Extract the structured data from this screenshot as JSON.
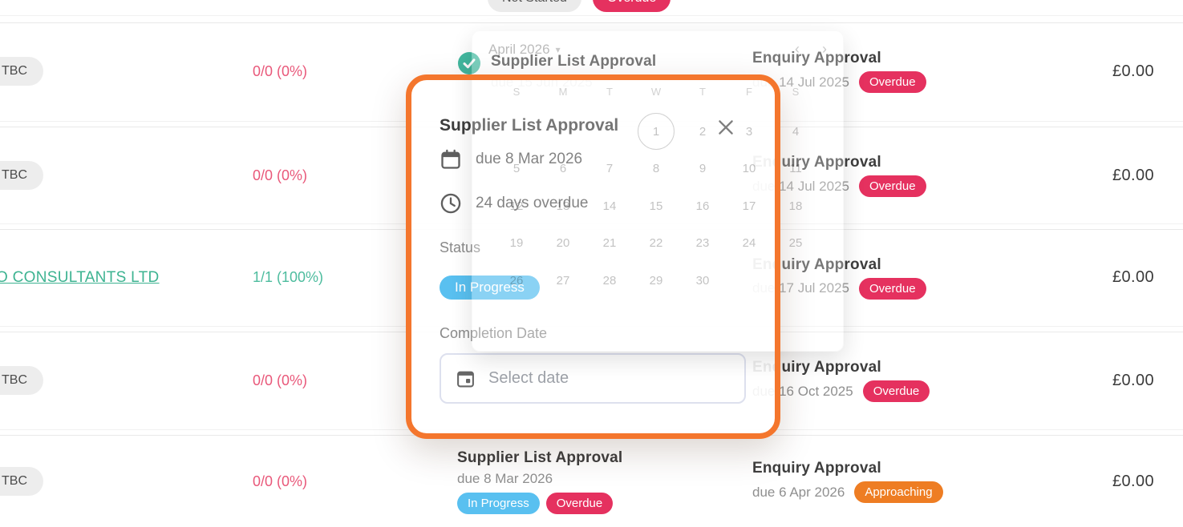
{
  "top_row": {
    "badges": [
      {
        "label": "Not Started",
        "type": "neutral"
      },
      {
        "label": "Overdue",
        "type": "danger"
      }
    ]
  },
  "table": {
    "rows": [
      {
        "supplier": {
          "kind": "badge",
          "label": "TBC"
        },
        "progress": {
          "value": "0/0 (0%)",
          "state": "danger"
        },
        "supplier_task": {
          "title": "Supplier List Approval",
          "due": "due 15 Jun 2025",
          "completed": true,
          "badges": []
        },
        "enquiry_task": {
          "title": "Enquiry Approval",
          "due": "due 14 Jul 2025",
          "badges": [
            {
              "label": "Overdue",
              "type": "danger"
            }
          ]
        },
        "amount": "£0.00"
      },
      {
        "supplier": {
          "kind": "badge",
          "label": "TBC"
        },
        "progress": {
          "value": "0/0 (0%)",
          "state": "danger"
        },
        "supplier_task": null,
        "enquiry_task": {
          "title": "Enquiry Approval",
          "due": "due 14 Jul 2025",
          "badges": [
            {
              "label": "Overdue",
              "type": "danger"
            }
          ]
        },
        "amount": "£0.00"
      },
      {
        "supplier": {
          "kind": "link",
          "label": "PO CONSULTANTS LTD"
        },
        "progress": {
          "value": "1/1 (100%)",
          "state": "success"
        },
        "supplier_task": null,
        "enquiry_task": {
          "title": "Enquiry Approval",
          "due": "due 17 Jul 2025",
          "badges": [
            {
              "label": "Overdue",
              "type": "danger"
            }
          ]
        },
        "amount": "£0.00"
      },
      {
        "supplier": {
          "kind": "badge",
          "label": "TBC"
        },
        "progress": {
          "value": "0/0 (0%)",
          "state": "danger"
        },
        "supplier_task": null,
        "enquiry_task": {
          "title": "Enquiry Approval",
          "due": "due 16 Oct 2025",
          "badges": [
            {
              "label": "Overdue",
              "type": "danger"
            }
          ]
        },
        "amount": "£0.00"
      },
      {
        "supplier": {
          "kind": "badge",
          "label": "TBC"
        },
        "progress": {
          "value": "0/0 (0%)",
          "state": "danger"
        },
        "supplier_task": {
          "title": "Supplier List Approval",
          "due": "due 8 Mar 2026",
          "completed": false,
          "badges": [
            {
              "label": "In Progress",
              "type": "info"
            },
            {
              "label": "Overdue",
              "type": "danger"
            }
          ]
        },
        "enquiry_task": {
          "title": "Enquiry Approval",
          "due": "due 6 Apr 2026",
          "badges": [
            {
              "label": "Approaching",
              "type": "warning"
            }
          ]
        },
        "amount": "£0.00"
      }
    ]
  },
  "popup": {
    "title": "Supplier List Approval",
    "due": "due 8 Mar 2026",
    "overdue": "24 days overdue",
    "status_label": "Status",
    "status_badge": {
      "label": "In Progress",
      "type": "info"
    },
    "completion_label": "Completion Date",
    "date_placeholder": "Select date"
  },
  "calendar": {
    "month": "April 2026",
    "day_headers": [
      "S",
      "M",
      "T",
      "W",
      "T",
      "F",
      "S"
    ],
    "weeks": [
      [
        "",
        "",
        "",
        "1",
        "2",
        "3",
        "4"
      ],
      [
        "5",
        "6",
        "7",
        "8",
        "9",
        "10",
        "11"
      ],
      [
        "12",
        "13",
        "14",
        "15",
        "16",
        "17",
        "18"
      ],
      [
        "19",
        "20",
        "21",
        "22",
        "23",
        "24",
        "25"
      ],
      [
        "26",
        "27",
        "28",
        "29",
        "30",
        "",
        ""
      ]
    ],
    "highlighted_day": "1"
  },
  "colors": {
    "danger": "#e5315f",
    "info": "#59c0f0",
    "warning": "#ee7d23",
    "success": "#45b89c",
    "link": "#3db391",
    "annotation": "#f4762d",
    "progress_danger": "#e9587a",
    "progress_success": "#4dbc9e",
    "check": "#43b9a0"
  }
}
